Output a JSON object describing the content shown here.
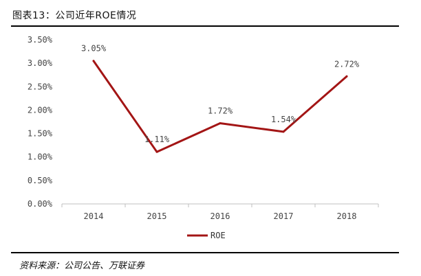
{
  "figure": {
    "title": "图表13：公司近年ROE情况",
    "source": "资料来源：公司公告、万联证券"
  },
  "chart_data": {
    "type": "line",
    "title": "",
    "xlabel": "",
    "ylabel": "",
    "categories": [
      "2014",
      "2015",
      "2016",
      "2017",
      "2018"
    ],
    "series": [
      {
        "name": "ROE",
        "color": "#A31515",
        "values": [
          3.05,
          1.11,
          1.72,
          1.54,
          2.72
        ],
        "labels": [
          "3.05%",
          "1.11%",
          "1.72%",
          "1.54%",
          "2.72%"
        ]
      }
    ],
    "ylim": [
      0,
      3.5
    ],
    "yticks": [
      "0.00%",
      "0.50%",
      "1.00%",
      "1.50%",
      "2.00%",
      "2.50%",
      "3.00%",
      "3.50%"
    ],
    "grid": false,
    "legend_position": "bottom"
  }
}
